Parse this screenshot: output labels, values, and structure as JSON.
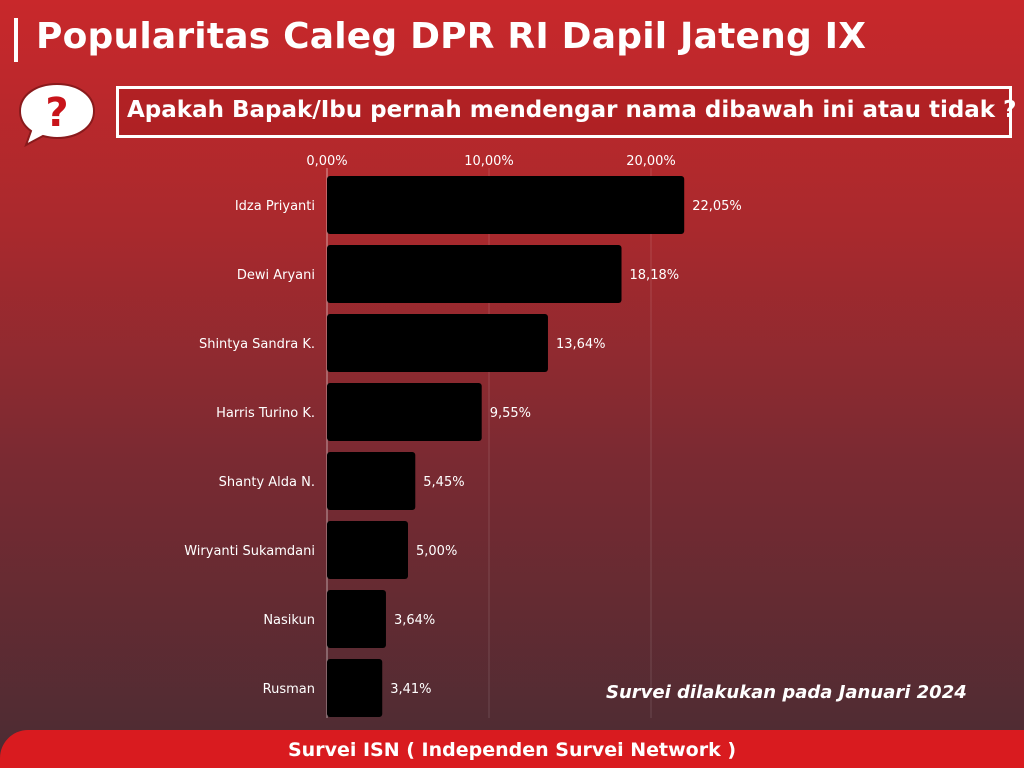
{
  "header": {
    "title": "Popularitas Caleg DPR RI Dapil Jateng IX",
    "question": "Apakah Bapak/Ibu pernah mendengar nama dibawah ini atau tidak ?",
    "bubble_glyph": "?",
    "bubble_icon": "speech-bubble-question-icon"
  },
  "note": "Survei dilakukan pada Januari 2024",
  "footer": {
    "text": "Survei ISN ( Independen Survei Network )"
  },
  "colors": {
    "bar": "#000000",
    "footer": "#d91b1f",
    "bubble_mark": "#c8141a"
  },
  "chart_data": {
    "type": "bar",
    "orientation": "horizontal",
    "categories": [
      "Idza Priyanti",
      "Dewi Aryani",
      "Shintya Sandra K.",
      "Harris Turino K.",
      "Shanty Alda N.",
      "Wiryanti Sukamdani",
      "Nasikun",
      "Rusman"
    ],
    "values": [
      22.05,
      18.18,
      13.64,
      9.55,
      5.45,
      5.0,
      3.64,
      3.41
    ],
    "value_labels": [
      "22,05%",
      "18,18%",
      "13,64%",
      "9,55%",
      "5,45%",
      "5,00%",
      "3,64%",
      "3,41%"
    ],
    "ticks": [
      0,
      10,
      20
    ],
    "tick_labels": [
      "0,00%",
      "10,00%",
      "20,00%"
    ],
    "xlim": [
      0,
      25
    ],
    "axis_position": "top",
    "grid": true,
    "legend": "none"
  }
}
